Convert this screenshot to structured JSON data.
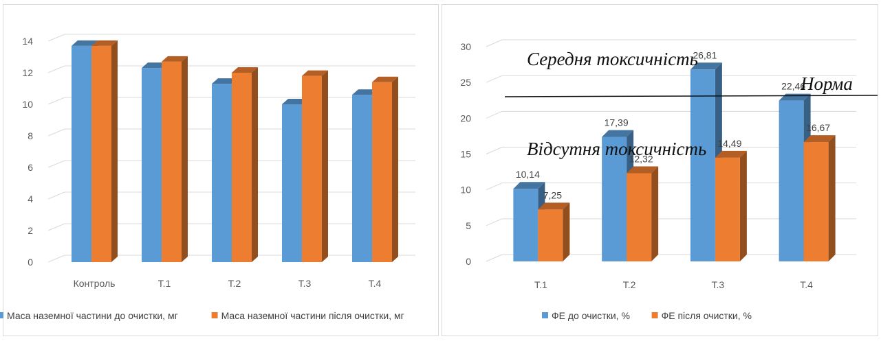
{
  "chart_data": [
    {
      "type": "bar",
      "title": "",
      "xlabel": "",
      "ylabel": "",
      "ylim": [
        0,
        14
      ],
      "yticks": [
        0,
        2,
        4,
        6,
        8,
        10,
        12,
        14
      ],
      "categories": [
        "Контроль",
        "Т.1",
        "Т.2",
        "Т.3",
        "Т.4"
      ],
      "series": [
        {
          "name": "Маса наземної частини до очистки, мг",
          "values": [
            13.7,
            12.3,
            11.3,
            10.0,
            10.6
          ],
          "color": "#5b9bd5"
        },
        {
          "name": "Маса наземної частини після очистки, мг",
          "values": [
            13.7,
            12.7,
            12.0,
            11.8,
            11.4
          ],
          "color": "#ed7d31"
        }
      ],
      "grid": true,
      "legend_position": "bottom"
    },
    {
      "type": "bar",
      "title": "",
      "xlabel": "",
      "ylabel": "",
      "ylim": [
        0,
        30
      ],
      "yticks": [
        0,
        5,
        10,
        15,
        20,
        25,
        30
      ],
      "categories": [
        "Т.1",
        "Т.2",
        "Т.3",
        "Т.4"
      ],
      "series": [
        {
          "name": "ФЕ до очистки, %",
          "values": [
            10.14,
            17.39,
            26.81,
            22.46
          ],
          "labels": [
            "10,14",
            "17,39",
            "26,81",
            "22,46"
          ],
          "color": "#5b9bd5"
        },
        {
          "name": "ФЕ після очистки, %",
          "values": [
            7.25,
            12.32,
            14.49,
            16.67
          ],
          "labels": [
            "7,25",
            "12,32",
            "14,49",
            "16,67"
          ],
          "color": "#ed7d31"
        }
      ],
      "grid": true,
      "legend_position": "bottom",
      "annotations": {
        "high_label": "Середня токсичність",
        "norm_label": "Норма",
        "low_label": "Відсутня токсичність"
      }
    }
  ]
}
